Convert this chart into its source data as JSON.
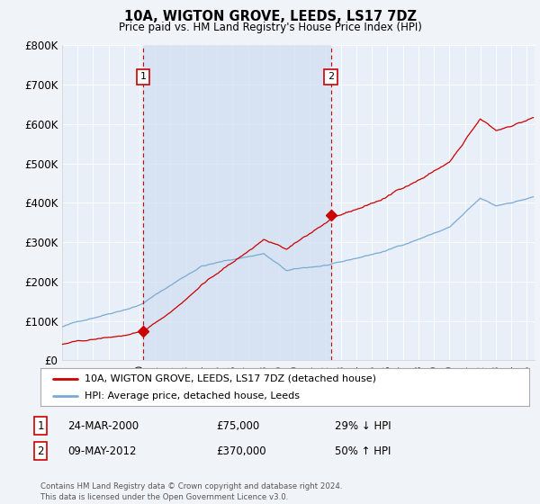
{
  "title": "10A, WIGTON GROVE, LEEDS, LS17 7DZ",
  "subtitle": "Price paid vs. HM Land Registry's House Price Index (HPI)",
  "background_color": "#f0f4f8",
  "plot_bg_color": "#e8eff8",
  "shade_color": "#d0dff0",
  "ylim": [
    0,
    800000
  ],
  "yticks": [
    0,
    100000,
    200000,
    300000,
    400000,
    500000,
    600000,
    700000,
    800000
  ],
  "ytick_labels": [
    "£0",
    "£100K",
    "£200K",
    "£300K",
    "£400K",
    "£500K",
    "£600K",
    "£700K",
    "£800K"
  ],
  "xlim_start": 1995.0,
  "xlim_end": 2025.5,
  "sale1_year": 2000.23,
  "sale1_price": 75000,
  "sale2_year": 2012.36,
  "sale2_price": 370000,
  "legend_line1": "10A, WIGTON GROVE, LEEDS, LS17 7DZ (detached house)",
  "legend_line2": "HPI: Average price, detached house, Leeds",
  "table_row1": [
    "1",
    "24-MAR-2000",
    "£75,000",
    "29% ↓ HPI"
  ],
  "table_row2": [
    "2",
    "09-MAY-2012",
    "£370,000",
    "50% ↑ HPI"
  ],
  "footer": "Contains HM Land Registry data © Crown copyright and database right 2024.\nThis data is licensed under the Open Government Licence v3.0.",
  "line_red_color": "#cc0000",
  "line_blue_color": "#7aaad4"
}
